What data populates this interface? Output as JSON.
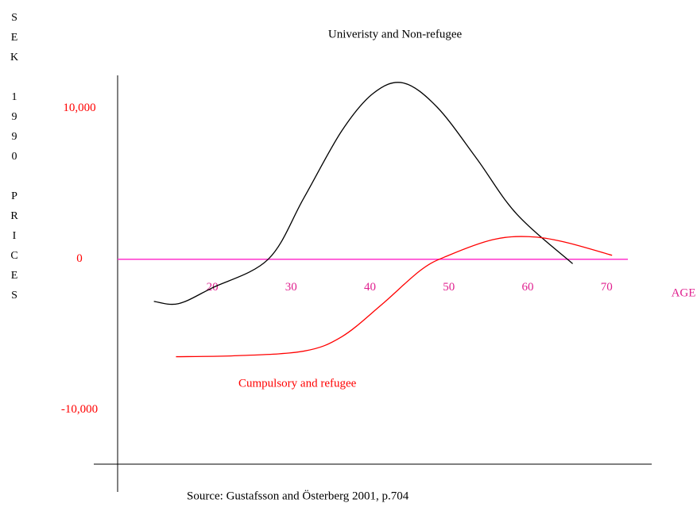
{
  "chart_data": {
    "type": "line",
    "x_label": "AGE",
    "y_label": "SEK 1990 PRICES",
    "source": "Source: Gustafsson and Österberg 2001, p.704",
    "xlim": [
      8,
      72.7
    ],
    "xticks": [
      20,
      30,
      40,
      50,
      60,
      70
    ],
    "ylim": [
      -13600,
      12200
    ],
    "yticks": [
      {
        "value": 10000,
        "label": "10,000"
      },
      0,
      {
        "value": -10000,
        "label": "-10,000"
      }
    ],
    "zero_line_color": "#ff33cc",
    "series": [
      {
        "name": "Univeristy and Non-refugee",
        "color": "#000000",
        "x": [
          12.6,
          15.7,
          20,
          27.1,
          31.6,
          36.4,
          40.4,
          44.2,
          48.5,
          53.5,
          58.6,
          65.7
        ],
        "values": [
          -2800,
          -2950,
          -1900,
          0,
          4050,
          8500,
          11000,
          11700,
          10100,
          6700,
          3000,
          -300
        ]
      },
      {
        "name": "Cumpulsory and refugee",
        "color": "#ff0000",
        "x": [
          15.4,
          23.2,
          31.6,
          36.4,
          41.4,
          46.5,
          50,
          55.6,
          60.1,
          64.6,
          70.7
        ],
        "values": [
          -6470,
          -6400,
          -6100,
          -5150,
          -3050,
          -700,
          260,
          1300,
          1500,
          1150,
          260
        ]
      }
    ]
  }
}
